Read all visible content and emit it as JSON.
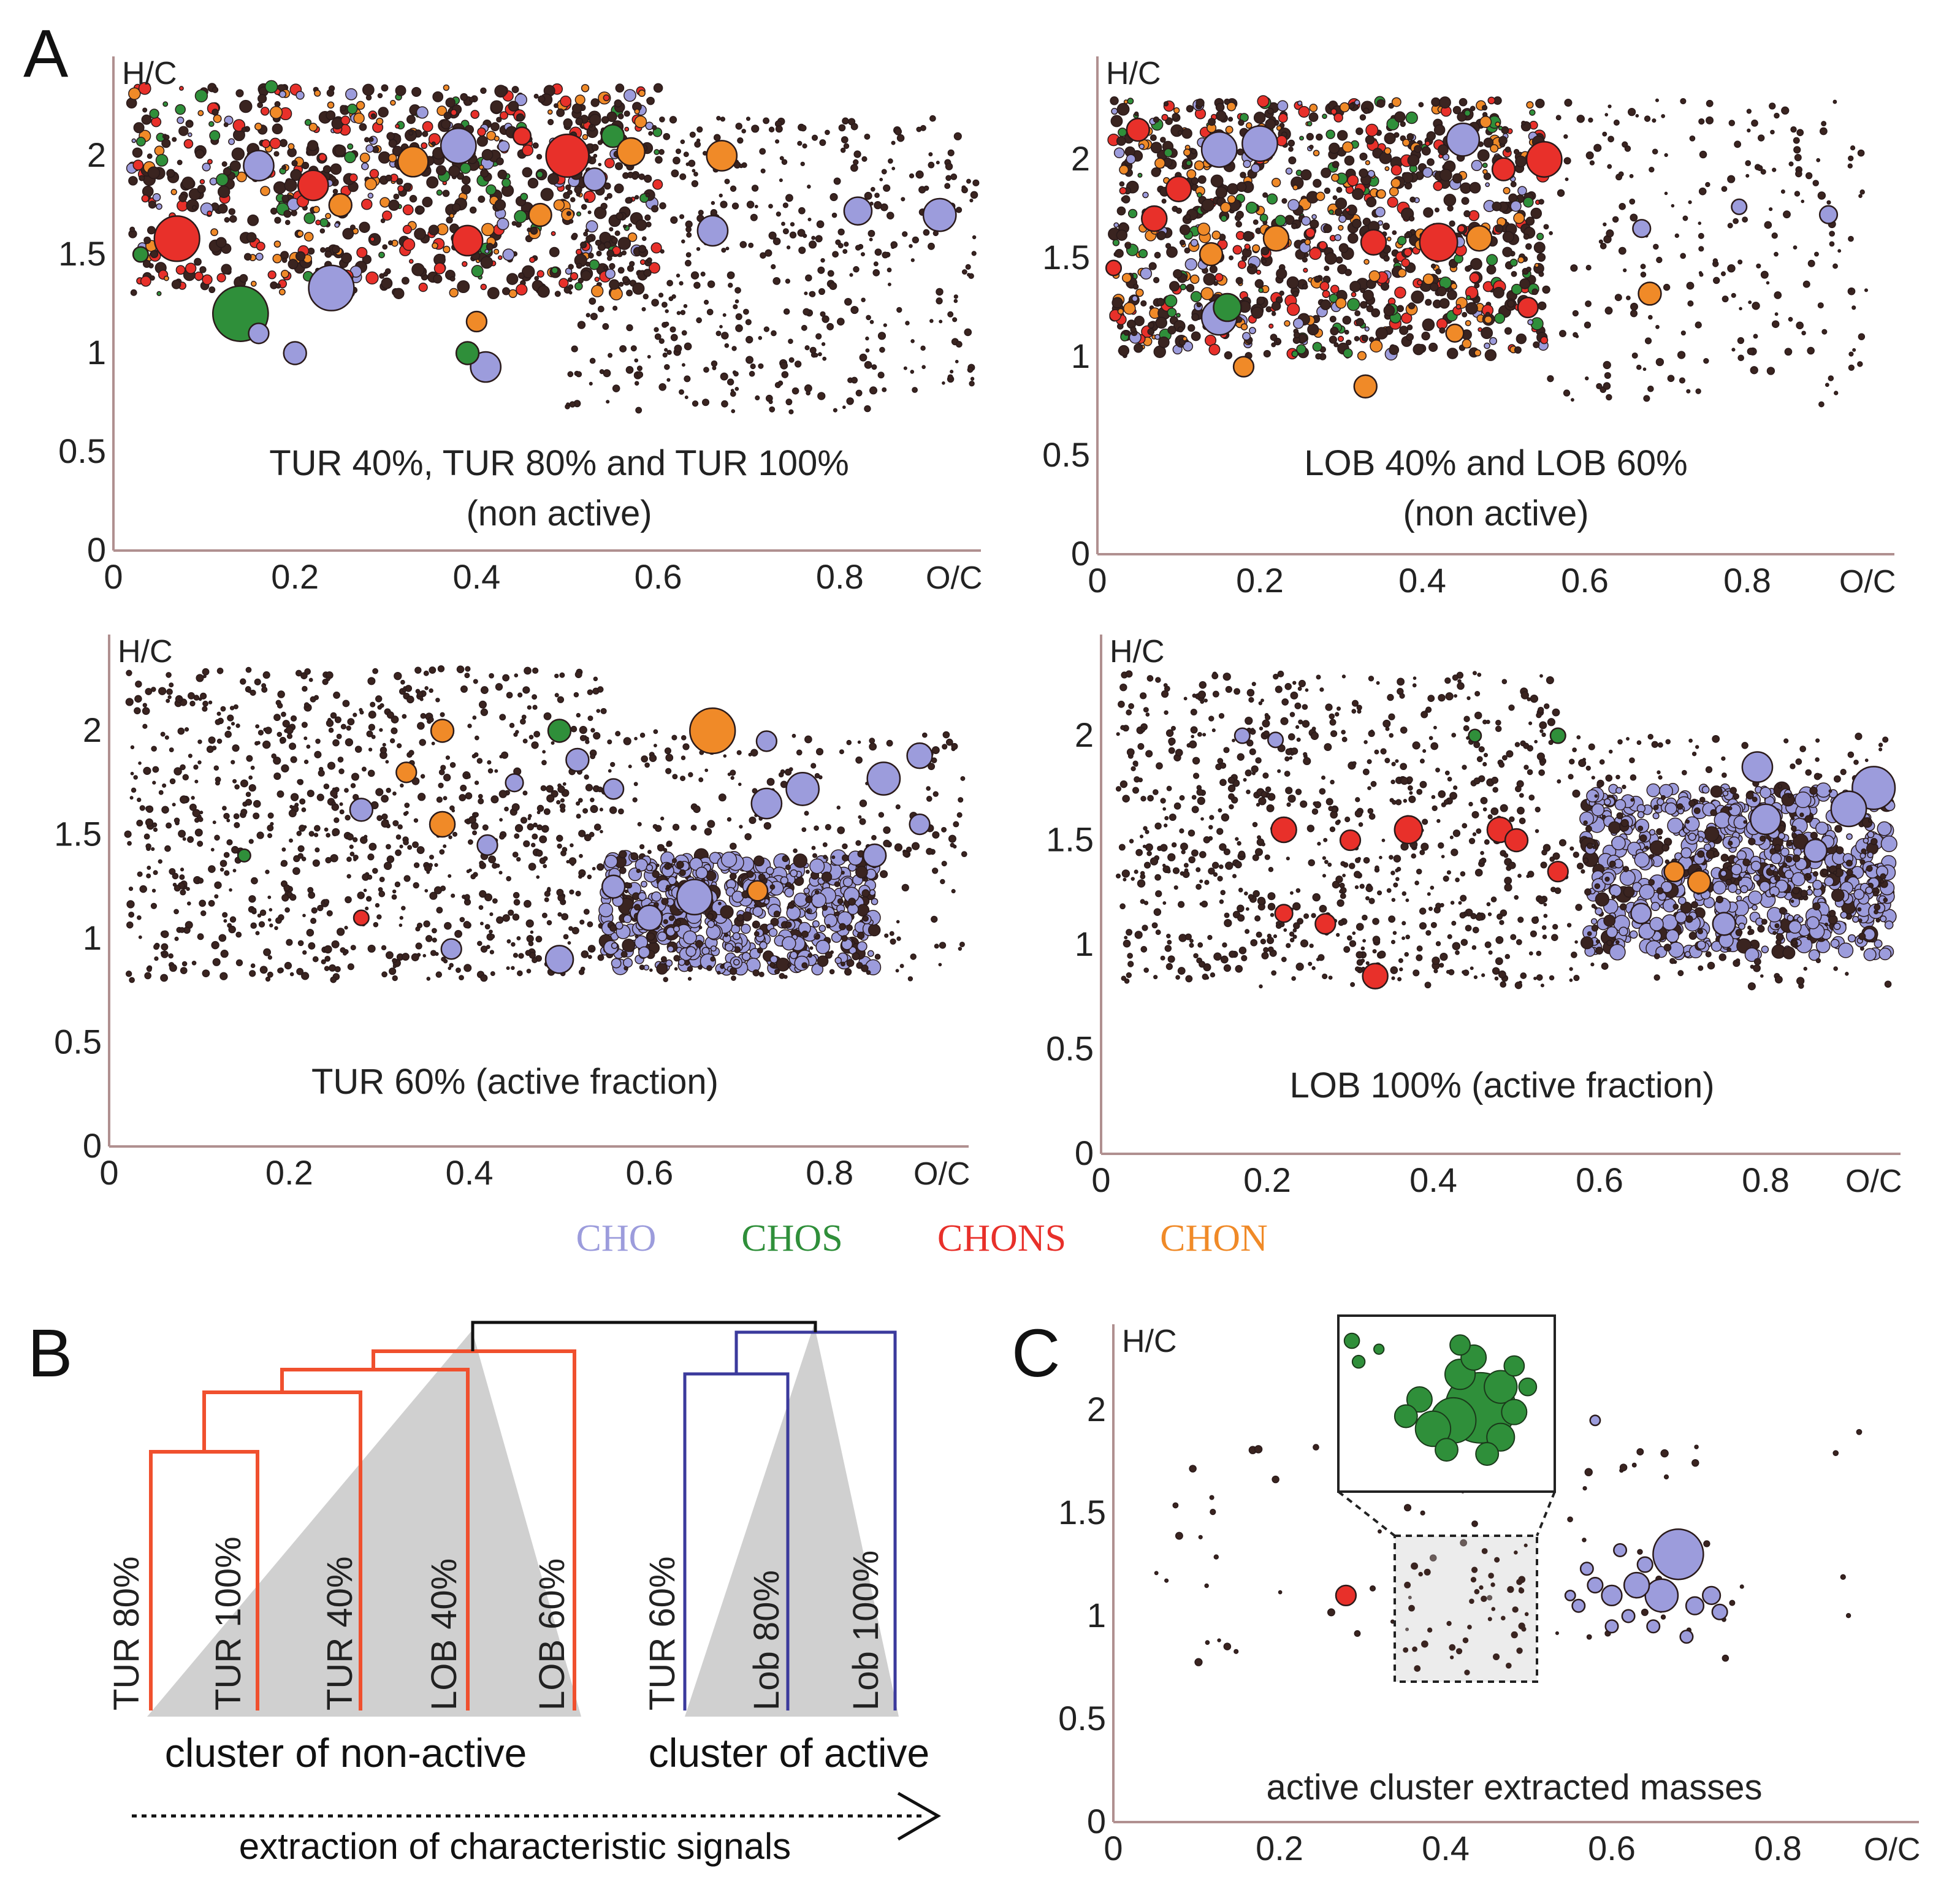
{
  "colors": {
    "CHO": "#9c9cdc",
    "CHOS": "#2f8f3a",
    "CHONS": "#e8302a",
    "CHON": "#f08a28",
    "dot": "#3a2420",
    "nonactive": "#f0502e",
    "active": "#3b3a9c",
    "root": "#111111",
    "wedge": "#d0d0d0"
  },
  "panel_labels": {
    "A": "A",
    "B": "B",
    "C": "C"
  },
  "legend": [
    {
      "key": "CHO",
      "label": "CHO"
    },
    {
      "key": "CHOS",
      "label": "CHOS"
    },
    {
      "key": "CHONS",
      "label": "CHONS"
    },
    {
      "key": "CHON",
      "label": "CHON"
    }
  ],
  "chart_data": [
    {
      "id": "A1",
      "type": "scatter",
      "xlabel": "O/C",
      "ylabel": "H/C",
      "xlim": [
        0,
        1.0
      ],
      "ylim": [
        0,
        2.5
      ],
      "xticks": [
        "0",
        "0.2",
        "0.4",
        "0.6",
        "0.8"
      ],
      "yticks": [
        "0",
        "0.5",
        "1",
        "1.5",
        "2"
      ],
      "caption": [
        "TUR 40%, TUR 80% and TUR 100%",
        "(non active)"
      ],
      "points": [
        [
          0.07,
          1.58,
          18,
          "CHONS"
        ],
        [
          0.14,
          1.2,
          22,
          "CHOS"
        ],
        [
          0.24,
          1.33,
          18,
          "CHO"
        ],
        [
          0.38,
          2.05,
          14,
          "CHO"
        ],
        [
          0.5,
          2.0,
          17,
          "CHONS"
        ],
        [
          0.67,
          2.0,
          12,
          "CHON"
        ],
        [
          0.39,
          1.57,
          12,
          "CHONS"
        ],
        [
          0.22,
          1.85,
          12,
          "CHONS"
        ],
        [
          0.33,
          1.97,
          12,
          "CHON"
        ],
        [
          0.66,
          1.62,
          12,
          "CHO"
        ],
        [
          0.82,
          1.72,
          11,
          "CHO"
        ],
        [
          0.91,
          1.7,
          13,
          "CHO"
        ],
        [
          0.41,
          0.93,
          12,
          "CHO"
        ],
        [
          0.39,
          1.0,
          9,
          "CHOS"
        ],
        [
          0.55,
          2.1,
          9,
          "CHOS"
        ],
        [
          0.57,
          2.02,
          11,
          "CHON"
        ],
        [
          0.2,
          1.0,
          9,
          "CHO"
        ],
        [
          0.16,
          1.95,
          12,
          "CHO"
        ],
        [
          0.25,
          1.75,
          9,
          "CHON"
        ],
        [
          0.16,
          1.1,
          8,
          "CHO"
        ],
        [
          0.53,
          1.88,
          9,
          "CHO"
        ],
        [
          0.47,
          1.7,
          9,
          "CHON"
        ],
        [
          0.4,
          1.16,
          8,
          "CHON"
        ],
        [
          0.03,
          1.5,
          6,
          "CHOS"
        ],
        [
          0.45,
          2.1,
          7,
          "CHONS"
        ]
      ]
    },
    {
      "id": "A2",
      "type": "scatter",
      "xlabel": "O/C",
      "ylabel": "H/C",
      "xlim": [
        0,
        1.0
      ],
      "ylim": [
        0,
        2.5
      ],
      "xticks": [
        "0",
        "0.2",
        "0.4",
        "0.6",
        "0.8"
      ],
      "yticks": [
        "0",
        "0.5",
        "1",
        "1.5",
        "2"
      ],
      "caption": [
        "LOB 40% and LOB 60%",
        "(non active)"
      ],
      "points": [
        [
          0.05,
          2.15,
          9,
          "CHONS"
        ],
        [
          0.15,
          2.05,
          14,
          "CHO"
        ],
        [
          0.2,
          2.08,
          14,
          "CHO"
        ],
        [
          0.1,
          1.85,
          10,
          "CHONS"
        ],
        [
          0.42,
          1.58,
          15,
          "CHONS"
        ],
        [
          0.45,
          2.1,
          13,
          "CHO"
        ],
        [
          0.55,
          2.0,
          14,
          "CHONS"
        ],
        [
          0.47,
          1.6,
          10,
          "CHON"
        ],
        [
          0.33,
          0.85,
          9,
          "CHON"
        ],
        [
          0.68,
          1.32,
          9,
          "CHON"
        ],
        [
          0.15,
          1.2,
          14,
          "CHO"
        ],
        [
          0.16,
          1.25,
          11,
          "CHOS"
        ],
        [
          0.5,
          1.95,
          9,
          "CHONS"
        ],
        [
          0.07,
          1.7,
          10,
          "CHONS"
        ],
        [
          0.34,
          1.58,
          10,
          "CHONS"
        ],
        [
          0.9,
          1.72,
          7,
          "CHO"
        ],
        [
          0.79,
          1.76,
          6,
          "CHO"
        ],
        [
          0.67,
          1.65,
          7,
          "CHO"
        ],
        [
          0.53,
          1.25,
          8,
          "CHONS"
        ],
        [
          0.22,
          1.6,
          10,
          "CHON"
        ],
        [
          0.14,
          1.52,
          9,
          "CHON"
        ],
        [
          0.18,
          0.95,
          8,
          "CHON"
        ],
        [
          0.44,
          1.12,
          7,
          "CHON"
        ],
        [
          0.02,
          1.45,
          6,
          "CHONS"
        ]
      ]
    },
    {
      "id": "A3",
      "type": "scatter",
      "xlabel": "O/C",
      "ylabel": "H/C",
      "xlim": [
        0,
        1.0
      ],
      "ylim": [
        0,
        2.5
      ],
      "xticks": [
        "0",
        "0.2",
        "0.4",
        "0.6",
        "0.8"
      ],
      "yticks": [
        "0",
        "0.5",
        "1",
        "1.5",
        "2"
      ],
      "caption": [
        "TUR 60% (active fraction)"
      ],
      "points": [
        [
          0.67,
          2.0,
          18,
          "CHON"
        ],
        [
          0.5,
          2.0,
          9,
          "CHOS"
        ],
        [
          0.37,
          2.0,
          9,
          "CHON"
        ],
        [
          0.52,
          1.86,
          9,
          "CHO"
        ],
        [
          0.86,
          1.77,
          13,
          "CHO"
        ],
        [
          0.9,
          1.88,
          10,
          "CHO"
        ],
        [
          0.77,
          1.72,
          13,
          "CHO"
        ],
        [
          0.73,
          1.65,
          12,
          "CHO"
        ],
        [
          0.37,
          1.55,
          10,
          "CHON"
        ],
        [
          0.28,
          1.62,
          9,
          "CHO"
        ],
        [
          0.42,
          1.45,
          8,
          "CHO"
        ],
        [
          0.5,
          0.9,
          11,
          "CHO"
        ],
        [
          0.38,
          0.95,
          8,
          "CHO"
        ],
        [
          0.65,
          1.2,
          14,
          "CHO"
        ],
        [
          0.6,
          1.1,
          10,
          "CHO"
        ],
        [
          0.72,
          1.23,
          8,
          "CHON"
        ],
        [
          0.33,
          1.8,
          8,
          "CHON"
        ],
        [
          0.9,
          1.55,
          8,
          "CHO"
        ],
        [
          0.56,
          1.72,
          8,
          "CHO"
        ],
        [
          0.85,
          1.4,
          9,
          "CHO"
        ],
        [
          0.15,
          1.4,
          5,
          "CHOS"
        ],
        [
          0.28,
          1.1,
          6,
          "CHONS"
        ],
        [
          0.45,
          1.75,
          7,
          "CHO"
        ],
        [
          0.73,
          1.95,
          8,
          "CHO"
        ],
        [
          0.56,
          1.25,
          9,
          "CHO"
        ]
      ]
    },
    {
      "id": "A4",
      "type": "scatter",
      "xlabel": "O/C",
      "ylabel": "H/C",
      "xlim": [
        0,
        1.0
      ],
      "ylim": [
        0,
        2.5
      ],
      "xticks": [
        "0",
        "0.2",
        "0.4",
        "0.6",
        "0.8"
      ],
      "yticks": [
        "0",
        "0.5",
        "1",
        "1.5",
        "2"
      ],
      "caption": [
        "LOB 100% (active fraction)"
      ],
      "points": [
        [
          0.93,
          1.75,
          17,
          "CHO"
        ],
        [
          0.9,
          1.65,
          14,
          "CHO"
        ],
        [
          0.79,
          1.85,
          12,
          "CHO"
        ],
        [
          0.8,
          1.6,
          12,
          "CHO"
        ],
        [
          0.72,
          1.3,
          9,
          "CHON"
        ],
        [
          0.69,
          1.35,
          8,
          "CHON"
        ],
        [
          0.33,
          0.85,
          10,
          "CHONS"
        ],
        [
          0.22,
          1.55,
          10,
          "CHONS"
        ],
        [
          0.37,
          1.55,
          11,
          "CHONS"
        ],
        [
          0.48,
          1.55,
          10,
          "CHONS"
        ],
        [
          0.5,
          1.5,
          9,
          "CHONS"
        ],
        [
          0.3,
          1.5,
          8,
          "CHONS"
        ],
        [
          0.55,
          1.35,
          8,
          "CHONS"
        ],
        [
          0.17,
          2.0,
          6,
          "CHO"
        ],
        [
          0.27,
          1.1,
          8,
          "CHONS"
        ],
        [
          0.22,
          1.15,
          7,
          "CHONS"
        ],
        [
          0.86,
          1.45,
          9,
          "CHO"
        ],
        [
          0.75,
          1.1,
          9,
          "CHO"
        ],
        [
          0.65,
          1.15,
          8,
          "CHO"
        ],
        [
          0.45,
          2.0,
          5,
          "CHOS"
        ],
        [
          0.55,
          2.0,
          6,
          "CHOS"
        ],
        [
          0.21,
          1.98,
          6,
          "CHO"
        ]
      ]
    },
    {
      "id": "C",
      "type": "scatter",
      "xlabel": "O/C",
      "ylabel": "H/C",
      "xlim": [
        0,
        1.0
      ],
      "ylim": [
        0,
        2.5
      ],
      "xticks": [
        "0",
        "0.2",
        "0.4",
        "0.6",
        "0.8"
      ],
      "yticks": [
        "0",
        "0.5",
        "1",
        "1.5",
        "2"
      ],
      "caption": [
        "active cluster extracted masses"
      ],
      "points": [
        [
          0.28,
          1.1,
          8,
          "CHONS"
        ],
        [
          0.68,
          1.3,
          20,
          "CHO"
        ],
        [
          0.66,
          1.1,
          13,
          "CHO"
        ],
        [
          0.63,
          1.15,
          10,
          "CHO"
        ],
        [
          0.6,
          1.1,
          8,
          "CHO"
        ],
        [
          0.7,
          1.05,
          7,
          "CHO"
        ],
        [
          0.72,
          1.1,
          7,
          "CHO"
        ],
        [
          0.58,
          1.15,
          6,
          "CHO"
        ],
        [
          0.62,
          1.0,
          5,
          "CHO"
        ],
        [
          0.65,
          0.95,
          5,
          "CHO"
        ],
        [
          0.57,
          1.23,
          5,
          "CHO"
        ],
        [
          0.73,
          1.02,
          6,
          "CHO"
        ],
        [
          0.64,
          1.25,
          6,
          "CHO"
        ],
        [
          0.69,
          0.9,
          5,
          "CHO"
        ],
        [
          0.61,
          1.32,
          5,
          "CHO"
        ],
        [
          0.56,
          1.05,
          5,
          "CHO"
        ],
        [
          0.6,
          0.95,
          5,
          "CHO"
        ],
        [
          0.55,
          1.1,
          4,
          "CHO"
        ],
        [
          0.58,
          1.95,
          4,
          "CHO"
        ]
      ],
      "inset_points": [
        [
          0.455,
          1.15,
          28,
          "CHOS"
        ],
        [
          0.435,
          1.12,
          18,
          "CHOS"
        ],
        [
          0.42,
          1.1,
          14,
          "CHOS"
        ],
        [
          0.47,
          1.2,
          13,
          "CHOS"
        ],
        [
          0.44,
          1.23,
          12,
          "CHOS"
        ],
        [
          0.47,
          1.08,
          11,
          "CHOS"
        ],
        [
          0.41,
          1.17,
          10,
          "CHOS"
        ],
        [
          0.45,
          1.27,
          10,
          "CHOS"
        ],
        [
          0.48,
          1.14,
          10,
          "CHOS"
        ],
        [
          0.43,
          1.05,
          9,
          "CHOS"
        ],
        [
          0.46,
          1.04,
          9,
          "CHOS"
        ],
        [
          0.4,
          1.13,
          9,
          "CHOS"
        ],
        [
          0.48,
          1.25,
          8,
          "CHOS"
        ],
        [
          0.36,
          1.31,
          6,
          "CHOS"
        ],
        [
          0.365,
          1.26,
          5,
          "CHOS"
        ],
        [
          0.38,
          1.29,
          4,
          "CHOS"
        ],
        [
          0.44,
          1.3,
          8,
          "CHOS"
        ],
        [
          0.49,
          1.2,
          7,
          "CHOS"
        ]
      ]
    }
  ],
  "dendrogram": {
    "nonactive_leaves": [
      "TUR 80%",
      "TUR 100%",
      "TUR 40%",
      "LOB 40%",
      "LOB 60%"
    ],
    "active_leaves": [
      "TUR 60%",
      "Lob 80%",
      "Lob 100%"
    ],
    "nonactive_label": "cluster of non-active",
    "active_label": "cluster of active",
    "arrow_label": "extraction of characteristic signals"
  }
}
